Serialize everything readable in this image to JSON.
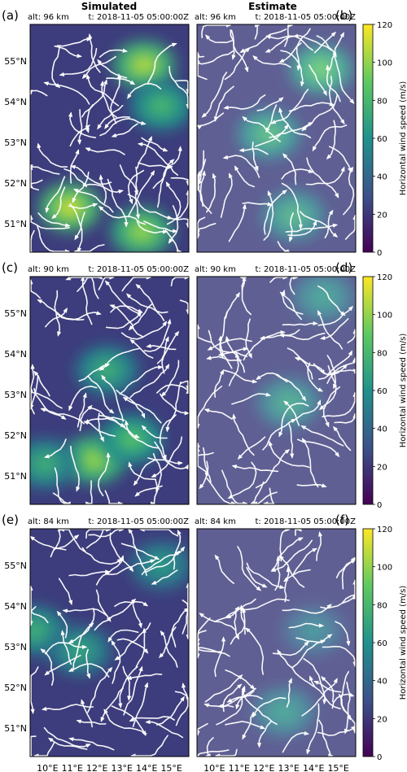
{
  "figure": {
    "col_titles": [
      "Simulated",
      "Estimate"
    ],
    "colorbar_label": "Horizontal wind speed (m/s)",
    "colorbar_ticks": [
      0,
      20,
      40,
      60,
      80,
      100,
      120
    ],
    "colormap": [
      "#440154",
      "#3b528b",
      "#21918c",
      "#5ec962",
      "#fde725"
    ],
    "lat_ticks": [
      "51°N",
      "52°N",
      "53°N",
      "54°N",
      "55°N"
    ],
    "lon_ticks": [
      "10°E",
      "11°E",
      "12°E",
      "13°E",
      "14°E",
      "15°E"
    ]
  },
  "chart_data": {
    "type": "heatmap",
    "description_units": "m/s",
    "clim": [
      0,
      120
    ],
    "lon_range": [
      9.3,
      15.7
    ],
    "lat_range": [
      50.3,
      55.9
    ],
    "rows": [
      {
        "altitude": "alt: 96 km",
        "time": "t: 2018-11-05 05:00:00Z",
        "panels": [
          {
            "letter": "(a)",
            "column": "Simulated",
            "peaks": [
              {
                "lon": 13.9,
                "lat": 54.9,
                "speed": 105
              },
              {
                "lon": 10.9,
                "lat": 51.4,
                "speed": 110
              },
              {
                "lon": 13.8,
                "lat": 50.8,
                "speed": 100
              },
              {
                "lon": 14.6,
                "lat": 53.9,
                "speed": 80
              }
            ]
          },
          {
            "letter": "(b)",
            "column": "Estimate",
            "peaks": [
              {
                "lon": 14.3,
                "lat": 54.8,
                "speed": 90
              },
              {
                "lon": 12.2,
                "lat": 53.2,
                "speed": 80
              },
              {
                "lon": 13.2,
                "lat": 51.2,
                "speed": 75
              }
            ]
          }
        ]
      },
      {
        "altitude": "alt: 90 km",
        "time": "t: 2018-11-05 05:00:00Z",
        "panels": [
          {
            "letter": "(c)",
            "column": "Simulated",
            "peaks": [
              {
                "lon": 11.9,
                "lat": 51.4,
                "speed": 100
              },
              {
                "lon": 13.4,
                "lat": 51.9,
                "speed": 85
              },
              {
                "lon": 9.9,
                "lat": 51.3,
                "speed": 75
              },
              {
                "lon": 12.4,
                "lat": 53.6,
                "speed": 75
              }
            ]
          },
          {
            "letter": "(d)",
            "column": "Estimate",
            "peaks": [
              {
                "lon": 13.0,
                "lat": 52.8,
                "speed": 70
              },
              {
                "lon": 14.4,
                "lat": 55.4,
                "speed": 65
              }
            ]
          }
        ]
      },
      {
        "altitude": "alt: 84 km",
        "time": "t: 2018-11-05 05:00:00Z",
        "panels": [
          {
            "letter": "(e)",
            "column": "Simulated",
            "peaks": [
              {
                "lon": 9.5,
                "lat": 53.4,
                "speed": 75
              },
              {
                "lon": 11.3,
                "lat": 52.9,
                "speed": 70
              },
              {
                "lon": 14.6,
                "lat": 55.0,
                "speed": 65
              }
            ]
          },
          {
            "letter": "(f)",
            "column": "Estimate",
            "peaks": [
              {
                "lon": 12.8,
                "lat": 51.4,
                "speed": 65
              },
              {
                "lon": 14.0,
                "lat": 53.4,
                "speed": 55
              }
            ]
          }
        ]
      }
    ]
  }
}
